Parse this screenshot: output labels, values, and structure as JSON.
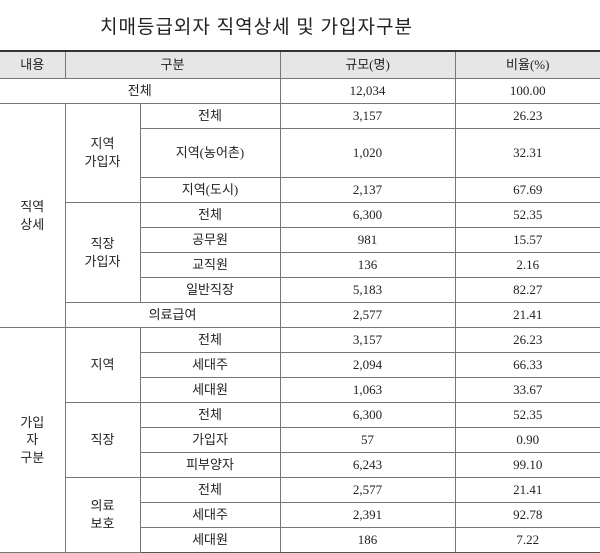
{
  "title": "치매등급외자 직역상세 및 가입자구분",
  "table": {
    "header": [
      "내용",
      "구분",
      "규모(명)",
      "비율(%)"
    ],
    "rows": [
      [
        "전체",
        "12,034",
        "100.00"
      ],
      [
        "직역\n상세",
        "지역\n가입자",
        "전체",
        "3,157",
        "26.23"
      ],
      [
        "지역(농어촌)",
        "1,020",
        "32.31"
      ],
      [
        "지역(도시)",
        "2,137",
        "67.69"
      ],
      [
        "직장\n가입자",
        "전체",
        "6,300",
        "52.35"
      ],
      [
        "공무원",
        "981",
        "15.57"
      ],
      [
        "교직원",
        "136",
        "2.16"
      ],
      [
        "일반직장",
        "5,183",
        "82.27"
      ],
      [
        "의료급여",
        "2,577",
        "21.41"
      ],
      [
        "가입\n자\n구분",
        "지역",
        "전체",
        "3,157",
        "26.23"
      ],
      [
        "세대주",
        "2,094",
        "66.33"
      ],
      [
        "세대원",
        "1,063",
        "33.67"
      ],
      [
        "직장",
        "전체",
        "6,300",
        "52.35"
      ],
      [
        "가입자",
        "57",
        "0.90"
      ],
      [
        "피부양자",
        "6,243",
        "99.10"
      ],
      [
        "의료\n보호",
        "전체",
        "2,577",
        "21.41"
      ],
      [
        "세대주",
        "2,391",
        "92.78"
      ],
      [
        "세대원",
        "186",
        "7.22"
      ]
    ]
  }
}
